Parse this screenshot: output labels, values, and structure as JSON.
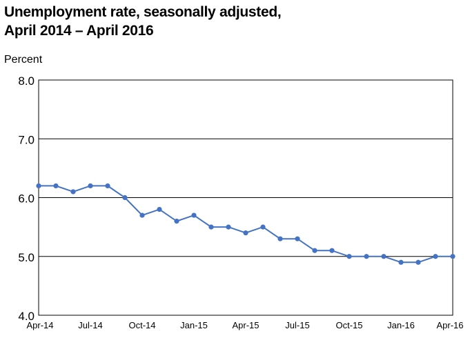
{
  "title_line1": "Unemployment rate, seasonally adjusted,",
  "title_line2": "April 2014 – April 2016",
  "chart_data": {
    "type": "line",
    "title": "Unemployment rate, seasonally adjusted, April 2014 – April 2016",
    "ylabel": "Percent",
    "xlabel": "",
    "ylim": [
      4.0,
      8.0
    ],
    "yticks": [
      "4.0",
      "5.0",
      "6.0",
      "7.0",
      "8.0"
    ],
    "grid": true,
    "legend": "none",
    "line_color": "#4472C4",
    "x": [
      "Apr-14",
      "May-14",
      "Jun-14",
      "Jul-14",
      "Aug-14",
      "Sep-14",
      "Oct-14",
      "Nov-14",
      "Dec-14",
      "Jan-15",
      "Feb-15",
      "Mar-15",
      "Apr-15",
      "May-15",
      "Jun-15",
      "Jul-15",
      "Aug-15",
      "Sep-15",
      "Oct-15",
      "Nov-15",
      "Dec-15",
      "Jan-16",
      "Feb-16",
      "Mar-16",
      "Apr-16"
    ],
    "xtick_labels": [
      {
        "index": 0,
        "label": "Apr-14"
      },
      {
        "index": 3,
        "label": "Jul-14"
      },
      {
        "index": 6,
        "label": "Oct-14"
      },
      {
        "index": 9,
        "label": "Jan-15"
      },
      {
        "index": 12,
        "label": "Apr-15"
      },
      {
        "index": 15,
        "label": "Jul-15"
      },
      {
        "index": 18,
        "label": "Oct-15"
      },
      {
        "index": 21,
        "label": "Jan-16"
      },
      {
        "index": 24,
        "label": "Apr-16"
      }
    ],
    "series": [
      {
        "values": [
          6.2,
          6.2,
          6.1,
          6.2,
          6.2,
          6.0,
          5.7,
          5.8,
          5.6,
          5.7,
          5.5,
          5.5,
          5.4,
          5.5,
          5.3,
          5.3,
          5.1,
          5.1,
          5.0,
          5.0,
          5.0,
          4.9,
          4.9,
          5.0,
          5.0
        ]
      }
    ]
  }
}
